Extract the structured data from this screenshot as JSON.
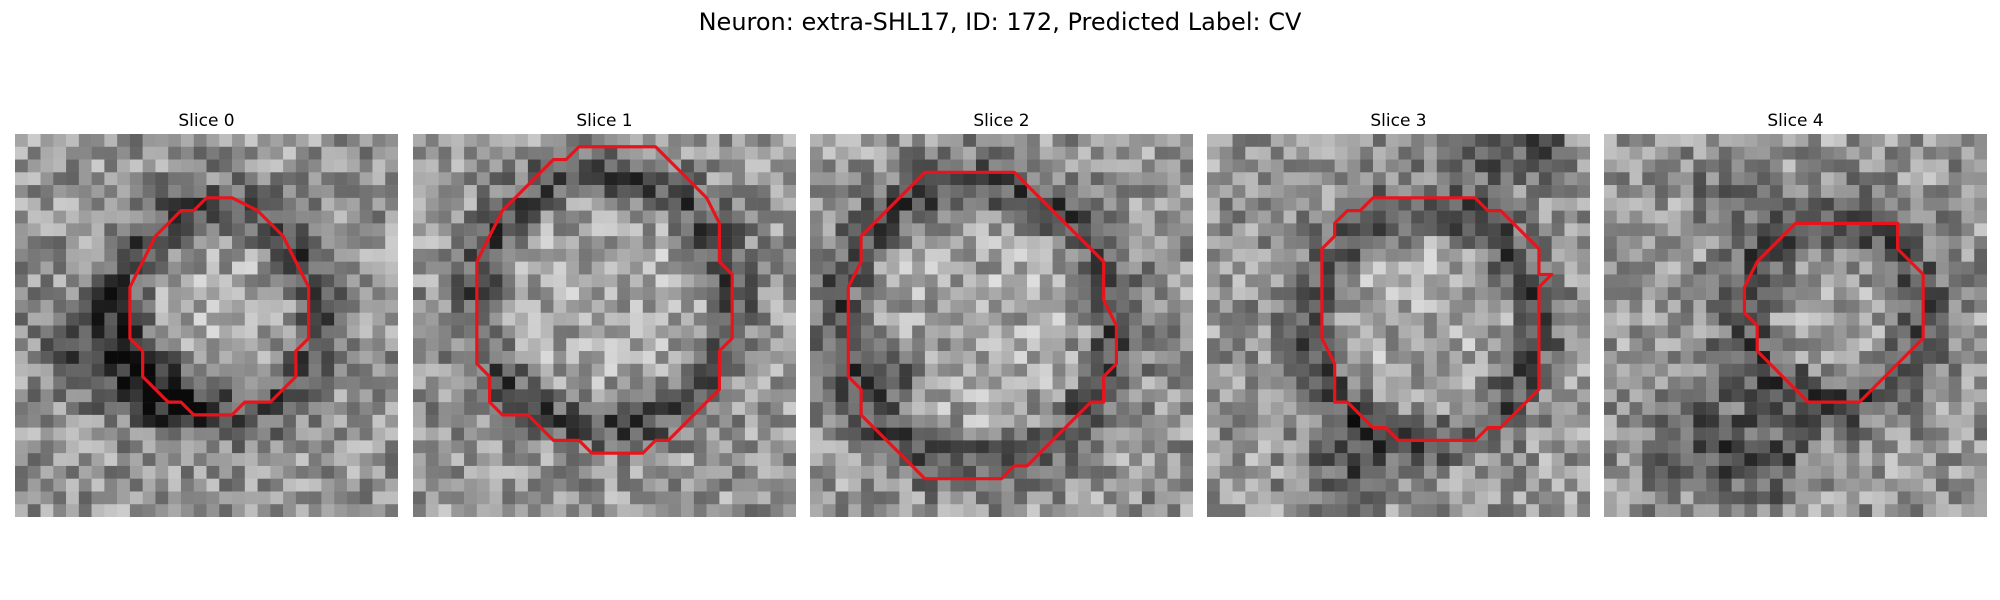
{
  "figure": {
    "title": "Neuron: extra-SHL17, ID: 172, Predicted Label: CV"
  },
  "contour_color": "#e8141c",
  "panels": [
    {
      "title": "Slice 0"
    },
    {
      "title": "Slice 1"
    },
    {
      "title": "Slice 2"
    },
    {
      "title": "Slice 3"
    },
    {
      "title": "Slice 4"
    }
  ]
}
